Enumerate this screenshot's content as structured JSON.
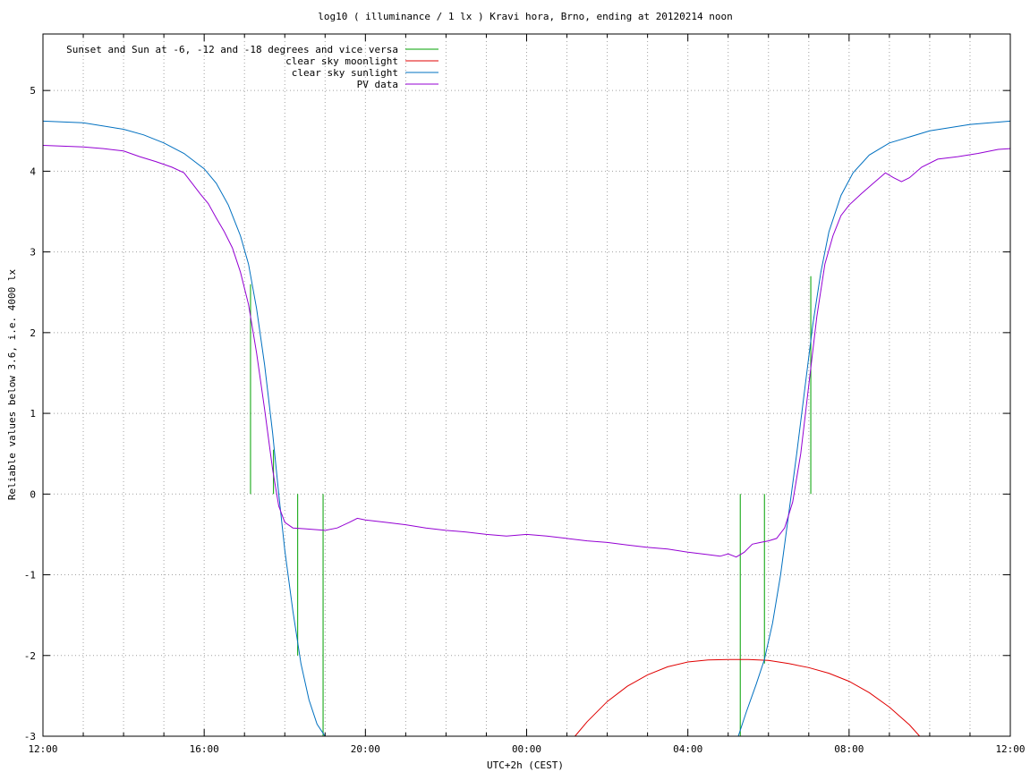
{
  "chart_data": {
    "type": "line",
    "title": "log10 ( illuminance / 1 lx ) Kravi hora, Brno, ending at 20120214 noon",
    "xlabel": "UTC+2h (CEST)",
    "ylabel": "Reliable values below 3.6, i.e. 4000 lx",
    "x_unit": "hours since 12:00 (day 1)",
    "xlim": [
      0,
      24
    ],
    "ylim": [
      -3,
      5.7
    ],
    "x_ticks": [
      {
        "value": 0,
        "label": "12:00"
      },
      {
        "value": 4,
        "label": "16:00"
      },
      {
        "value": 8,
        "label": "20:00"
      },
      {
        "value": 12,
        "label": "00:00"
      },
      {
        "value": 16,
        "label": "04:00"
      },
      {
        "value": 20,
        "label": "08:00"
      },
      {
        "value": 24,
        "label": "12:00"
      }
    ],
    "y_ticks": [
      {
        "value": -3,
        "label": "-3"
      },
      {
        "value": -2,
        "label": "-2"
      },
      {
        "value": -1,
        "label": "-1"
      },
      {
        "value": 0,
        "label": "0"
      },
      {
        "value": 1,
        "label": "1"
      },
      {
        "value": 2,
        "label": "2"
      },
      {
        "value": 3,
        "label": "3"
      },
      {
        "value": 4,
        "label": "4"
      },
      {
        "value": 5,
        "label": "5"
      }
    ],
    "grid": true,
    "legend_position": "top-left",
    "series": [
      {
        "name": "Sunset and Sun at -6, -12 and -18 degrees and vice versa",
        "color": "#00a000",
        "style": "vertical-lines",
        "lines": [
          {
            "x": 5.15,
            "y0": 0,
            "y1": 2.6
          },
          {
            "x": 5.72,
            "y0": 0,
            "y1": 0.55
          },
          {
            "x": 6.32,
            "y0": 0,
            "y1": -2.0
          },
          {
            "x": 6.95,
            "y0": -3,
            "y1": 0
          },
          {
            "x": 17.3,
            "y0": -3,
            "y1": 0
          },
          {
            "x": 17.9,
            "y0": -2.1,
            "y1": 0
          },
          {
            "x": 19.05,
            "y0": 0,
            "y1": 2.7
          }
        ]
      },
      {
        "name": "clear sky moonlight",
        "color": "#e00000",
        "points": [
          [
            13.2,
            -3.0
          ],
          [
            13.5,
            -2.82
          ],
          [
            14.0,
            -2.57
          ],
          [
            14.5,
            -2.38
          ],
          [
            15.0,
            -2.24
          ],
          [
            15.5,
            -2.14
          ],
          [
            16.0,
            -2.08
          ],
          [
            16.5,
            -2.055
          ],
          [
            17.0,
            -2.05
          ],
          [
            17.5,
            -2.05
          ],
          [
            18.0,
            -2.06
          ],
          [
            18.5,
            -2.1
          ],
          [
            19.0,
            -2.15
          ],
          [
            19.5,
            -2.22
          ],
          [
            20.0,
            -2.32
          ],
          [
            20.5,
            -2.46
          ],
          [
            21.0,
            -2.64
          ],
          [
            21.5,
            -2.86
          ],
          [
            21.75,
            -3.0
          ]
        ]
      },
      {
        "name": "clear sky sunlight",
        "color": "#0070c0",
        "points": [
          [
            0,
            4.62
          ],
          [
            1.0,
            4.6
          ],
          [
            2.0,
            4.52
          ],
          [
            2.5,
            4.45
          ],
          [
            3.0,
            4.35
          ],
          [
            3.5,
            4.22
          ],
          [
            4.0,
            4.03
          ],
          [
            4.3,
            3.85
          ],
          [
            4.6,
            3.58
          ],
          [
            4.9,
            3.2
          ],
          [
            5.1,
            2.85
          ],
          [
            5.3,
            2.3
          ],
          [
            5.5,
            1.6
          ],
          [
            5.7,
            0.75
          ],
          [
            5.85,
            0.0
          ],
          [
            6.0,
            -0.7
          ],
          [
            6.2,
            -1.45
          ],
          [
            6.4,
            -2.1
          ],
          [
            6.6,
            -2.55
          ],
          [
            6.8,
            -2.85
          ],
          [
            7.0,
            -3.0
          ],
          [
            17.25,
            -3.0
          ],
          [
            17.45,
            -2.7
          ],
          [
            17.7,
            -2.35
          ],
          [
            17.9,
            -2.05
          ],
          [
            18.1,
            -1.6
          ],
          [
            18.3,
            -1.0
          ],
          [
            18.5,
            -0.25
          ],
          [
            18.7,
            0.5
          ],
          [
            18.9,
            1.3
          ],
          [
            19.1,
            2.1
          ],
          [
            19.3,
            2.75
          ],
          [
            19.5,
            3.25
          ],
          [
            19.8,
            3.7
          ],
          [
            20.1,
            3.98
          ],
          [
            20.5,
            4.2
          ],
          [
            21.0,
            4.35
          ],
          [
            22.0,
            4.5
          ],
          [
            23.0,
            4.58
          ],
          [
            24,
            4.62
          ]
        ]
      },
      {
        "name": "PV data",
        "color": "#9400d3",
        "points": [
          [
            0,
            4.32
          ],
          [
            0.5,
            4.31
          ],
          [
            1.0,
            4.3
          ],
          [
            1.5,
            4.28
          ],
          [
            2.0,
            4.25
          ],
          [
            2.4,
            4.18
          ],
          [
            2.8,
            4.12
          ],
          [
            3.2,
            4.05
          ],
          [
            3.5,
            3.98
          ],
          [
            3.7,
            3.85
          ],
          [
            3.9,
            3.72
          ],
          [
            4.1,
            3.6
          ],
          [
            4.3,
            3.42
          ],
          [
            4.5,
            3.25
          ],
          [
            4.7,
            3.05
          ],
          [
            4.9,
            2.75
          ],
          [
            5.1,
            2.35
          ],
          [
            5.3,
            1.75
          ],
          [
            5.5,
            1.05
          ],
          [
            5.7,
            0.3
          ],
          [
            5.85,
            -0.15
          ],
          [
            6.0,
            -0.35
          ],
          [
            6.2,
            -0.42
          ],
          [
            6.5,
            -0.43
          ],
          [
            7.0,
            -0.45
          ],
          [
            7.3,
            -0.42
          ],
          [
            7.6,
            -0.35
          ],
          [
            7.8,
            -0.3
          ],
          [
            8.0,
            -0.32
          ],
          [
            8.5,
            -0.35
          ],
          [
            9.0,
            -0.38
          ],
          [
            9.5,
            -0.42
          ],
          [
            10.0,
            -0.45
          ],
          [
            10.5,
            -0.47
          ],
          [
            11.0,
            -0.5
          ],
          [
            11.5,
            -0.52
          ],
          [
            12.0,
            -0.5
          ],
          [
            12.5,
            -0.52
          ],
          [
            13.0,
            -0.55
          ],
          [
            13.5,
            -0.58
          ],
          [
            14.0,
            -0.6
          ],
          [
            14.5,
            -0.63
          ],
          [
            15.0,
            -0.66
          ],
          [
            15.5,
            -0.68
          ],
          [
            16.0,
            -0.72
          ],
          [
            16.5,
            -0.75
          ],
          [
            16.8,
            -0.77
          ],
          [
            17.0,
            -0.74
          ],
          [
            17.2,
            -0.78
          ],
          [
            17.4,
            -0.72
          ],
          [
            17.6,
            -0.62
          ],
          [
            17.8,
            -0.6
          ],
          [
            18.0,
            -0.58
          ],
          [
            18.2,
            -0.55
          ],
          [
            18.4,
            -0.42
          ],
          [
            18.6,
            -0.1
          ],
          [
            18.8,
            0.5
          ],
          [
            19.0,
            1.35
          ],
          [
            19.2,
            2.2
          ],
          [
            19.4,
            2.85
          ],
          [
            19.6,
            3.2
          ],
          [
            19.8,
            3.45
          ],
          [
            20.0,
            3.58
          ],
          [
            20.3,
            3.72
          ],
          [
            20.6,
            3.85
          ],
          [
            20.9,
            3.98
          ],
          [
            21.1,
            3.92
          ],
          [
            21.3,
            3.87
          ],
          [
            21.5,
            3.92
          ],
          [
            21.8,
            4.05
          ],
          [
            22.2,
            4.15
          ],
          [
            22.7,
            4.18
          ],
          [
            23.2,
            4.22
          ],
          [
            23.7,
            4.27
          ],
          [
            24,
            4.28
          ]
        ]
      }
    ]
  }
}
